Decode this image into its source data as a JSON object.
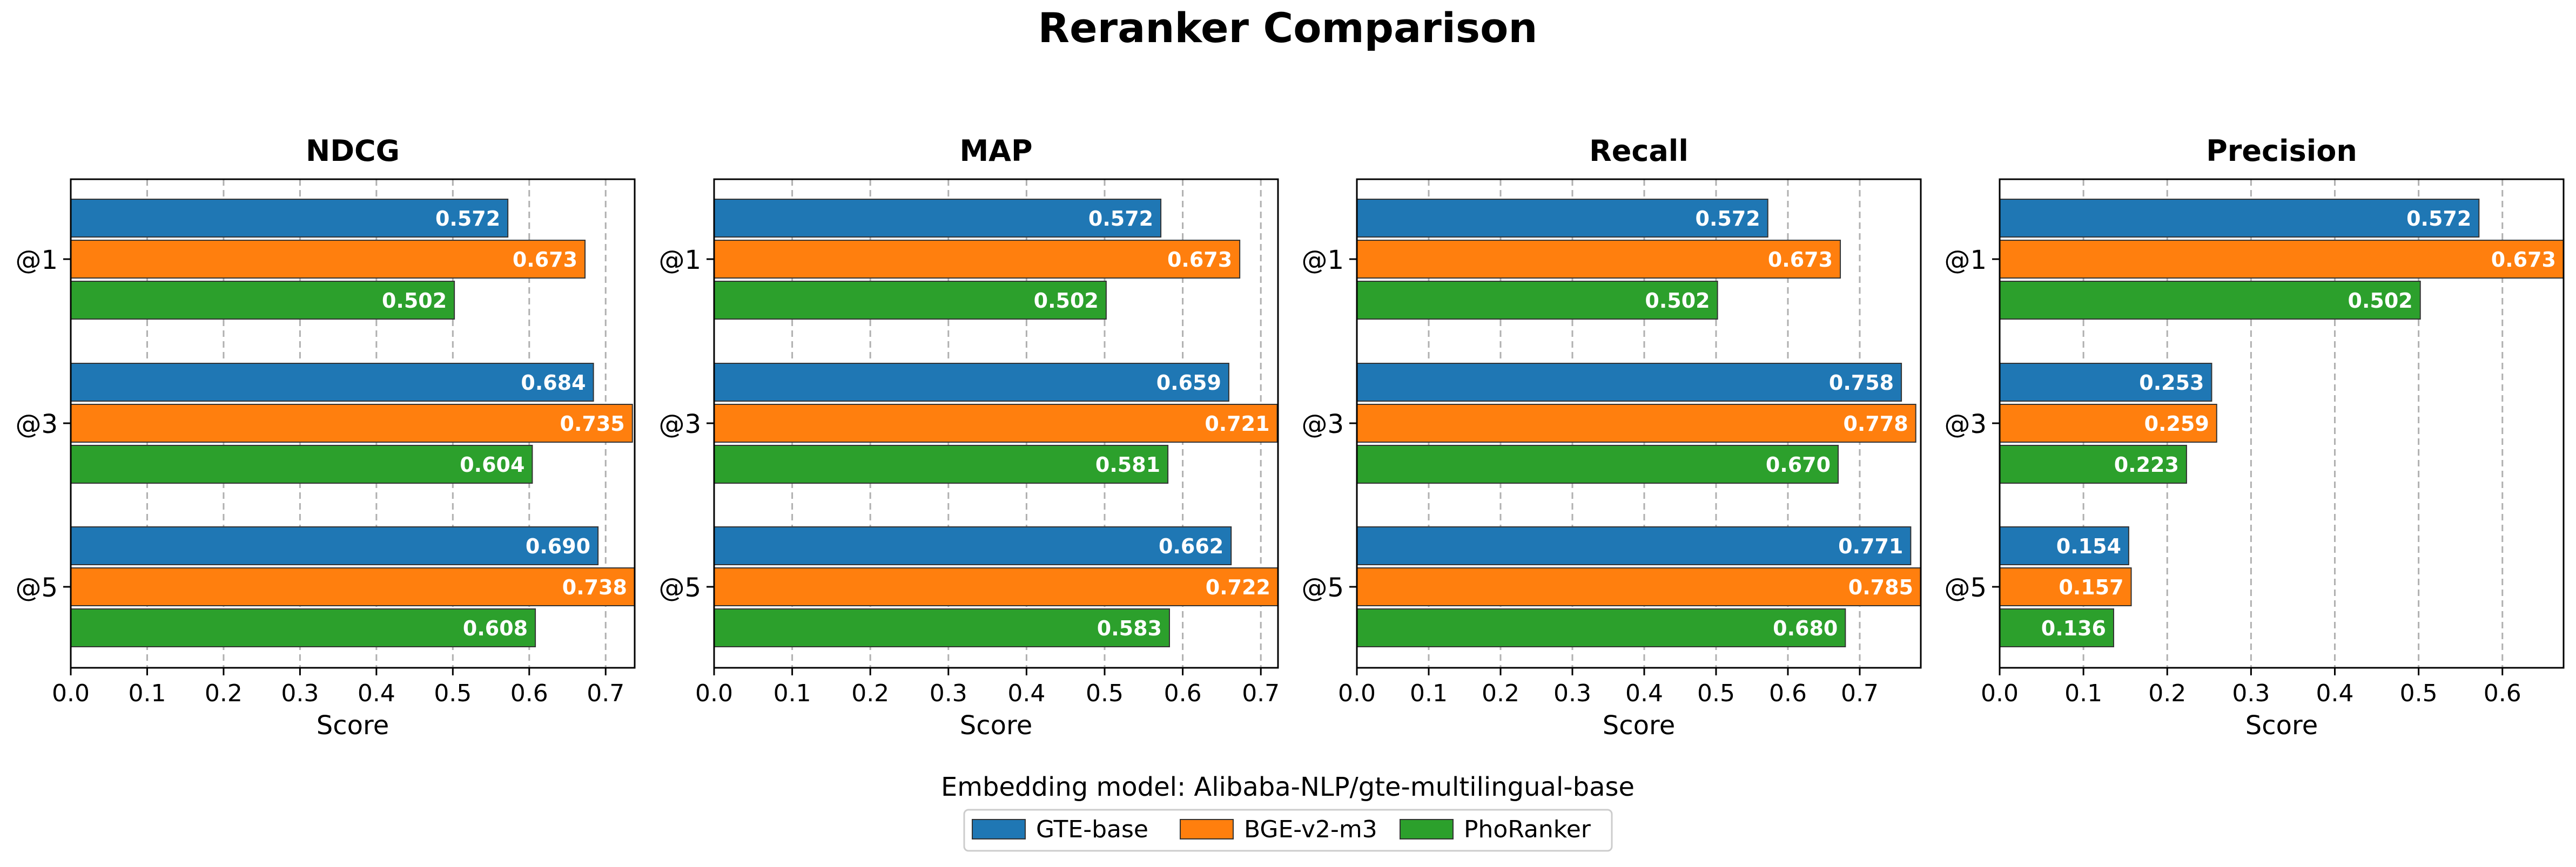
{
  "figure": {
    "title": "Reranker Comparison",
    "legend_title": "Embedding model: Alibaba-NLP/gte-multilingual-base"
  },
  "chart_data": [
    {
      "type": "bar",
      "orientation": "horizontal",
      "title": "NDCG",
      "xlabel": "Score",
      "ylabel": "",
      "categories": [
        "@1",
        "@3",
        "@5"
      ],
      "xlim": [
        0,
        0.738
      ],
      "xticks": [
        "0.0",
        "0.1",
        "0.2",
        "0.3",
        "0.4",
        "0.5",
        "0.6",
        "0.7"
      ],
      "grid": "x",
      "series": [
        {
          "name": "GTE-base",
          "values": [
            0.572,
            0.684,
            0.69
          ]
        },
        {
          "name": "BGE-v2-m3",
          "values": [
            0.673,
            0.735,
            0.738
          ]
        },
        {
          "name": "PhoRanker",
          "values": [
            0.502,
            0.604,
            0.608
          ]
        }
      ]
    },
    {
      "type": "bar",
      "orientation": "horizontal",
      "title": "MAP",
      "xlabel": "Score",
      "ylabel": "",
      "categories": [
        "@1",
        "@3",
        "@5"
      ],
      "xlim": [
        0,
        0.722
      ],
      "xticks": [
        "0.0",
        "0.1",
        "0.2",
        "0.3",
        "0.4",
        "0.5",
        "0.6",
        "0.7"
      ],
      "grid": "x",
      "series": [
        {
          "name": "GTE-base",
          "values": [
            0.572,
            0.659,
            0.662
          ]
        },
        {
          "name": "BGE-v2-m3",
          "values": [
            0.673,
            0.721,
            0.722
          ]
        },
        {
          "name": "PhoRanker",
          "values": [
            0.502,
            0.581,
            0.583
          ]
        }
      ]
    },
    {
      "type": "bar",
      "orientation": "horizontal",
      "title": "Recall",
      "xlabel": "Score",
      "ylabel": "",
      "categories": [
        "@1",
        "@3",
        "@5"
      ],
      "xlim": [
        0,
        0.785
      ],
      "xticks": [
        "0.0",
        "0.1",
        "0.2",
        "0.3",
        "0.4",
        "0.5",
        "0.6",
        "0.7"
      ],
      "grid": "x",
      "series": [
        {
          "name": "GTE-base",
          "values": [
            0.572,
            0.758,
            0.771
          ]
        },
        {
          "name": "BGE-v2-m3",
          "values": [
            0.673,
            0.778,
            0.785
          ]
        },
        {
          "name": "PhoRanker",
          "values": [
            0.502,
            0.67,
            0.68
          ]
        }
      ]
    },
    {
      "type": "bar",
      "orientation": "horizontal",
      "title": "Precision",
      "xlabel": "Score",
      "ylabel": "",
      "categories": [
        "@1",
        "@3",
        "@5"
      ],
      "xlim": [
        0,
        0.673
      ],
      "xticks": [
        "0.0",
        "0.1",
        "0.2",
        "0.3",
        "0.4",
        "0.5",
        "0.6"
      ],
      "grid": "x",
      "series": [
        {
          "name": "GTE-base",
          "values": [
            0.572,
            0.253,
            0.154
          ]
        },
        {
          "name": "BGE-v2-m3",
          "values": [
            0.673,
            0.259,
            0.157
          ]
        },
        {
          "name": "PhoRanker",
          "values": [
            0.502,
            0.223,
            0.136
          ]
        }
      ]
    }
  ],
  "legend": {
    "placement": "bottom-center",
    "items": [
      {
        "label": "GTE-base",
        "color": "#1f77b4"
      },
      {
        "label": "BGE-v2-m3",
        "color": "#ff7f0e"
      },
      {
        "label": "PhoRanker",
        "color": "#2ca02c"
      }
    ]
  },
  "colors": {
    "GTE-base": "#1f77b4",
    "BGE-v2-m3": "#ff7f0e",
    "PhoRanker": "#2ca02c",
    "grid": "#b0b0b0",
    "axis": "#000000",
    "value_label": "#ffffff"
  }
}
